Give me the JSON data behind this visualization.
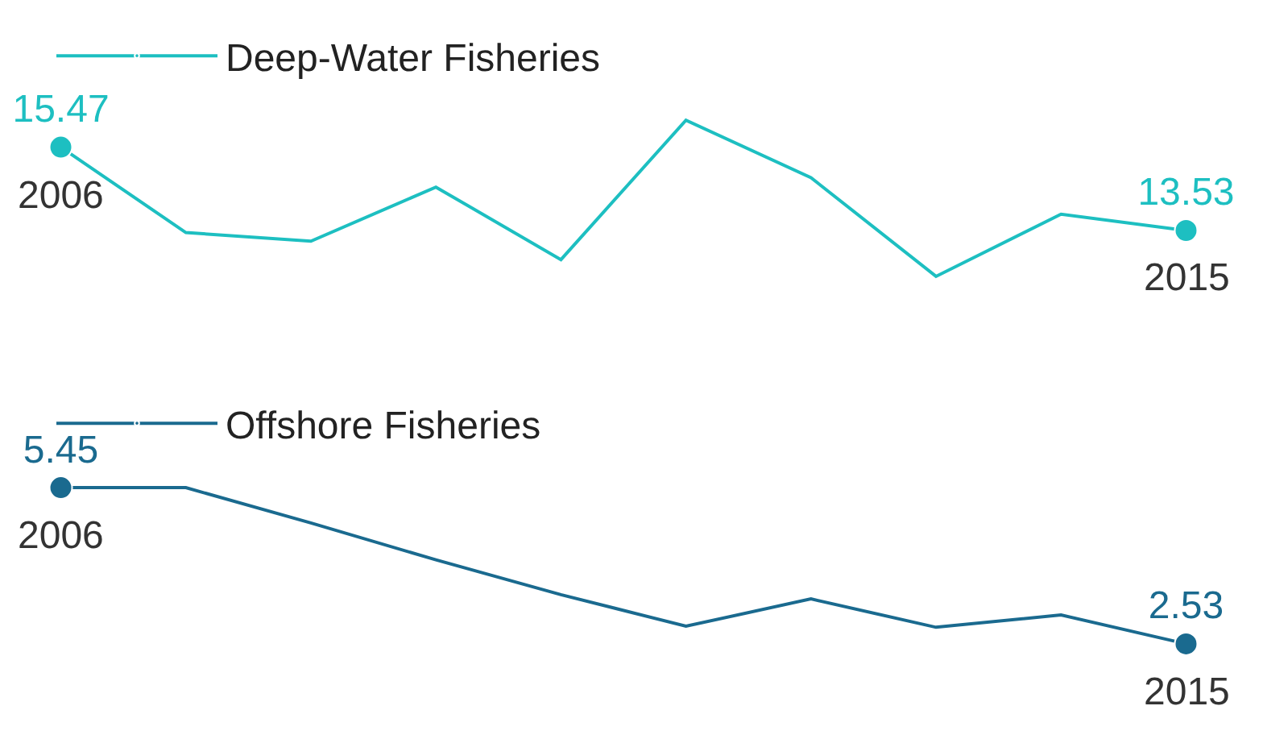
{
  "chart_data": [
    {
      "type": "line",
      "categories": [
        "2006",
        null,
        null,
        null,
        null,
        null,
        null,
        null,
        null,
        "2015"
      ],
      "legend": "top left",
      "series": [
        {
          "name": "Deep-Water Fisheries",
          "color": "#1dbfc1",
          "values": [
            15.47,
            13.48,
            13.28,
            14.54,
            12.85,
            16.1,
            14.76,
            12.46,
            13.91,
            13.53
          ],
          "value_labels": [
            "15.47",
            null,
            null,
            null,
            null,
            null,
            null,
            null,
            null,
            "13.53"
          ]
        }
      ]
    },
    {
      "type": "line",
      "categories": [
        "2006",
        null,
        null,
        null,
        null,
        null,
        null,
        null,
        null,
        "2015"
      ],
      "legend": "top left",
      "series": [
        {
          "name": "Offshore Fisheries",
          "color": "#1a6a8f",
          "values": [
            5.45,
            5.45,
            4.79,
            4.1,
            3.45,
            2.86,
            3.37,
            2.84,
            3.07,
            2.53
          ],
          "value_labels": [
            "5.45",
            null,
            null,
            null,
            null,
            null,
            null,
            null,
            null,
            "2.53"
          ]
        }
      ]
    }
  ]
}
